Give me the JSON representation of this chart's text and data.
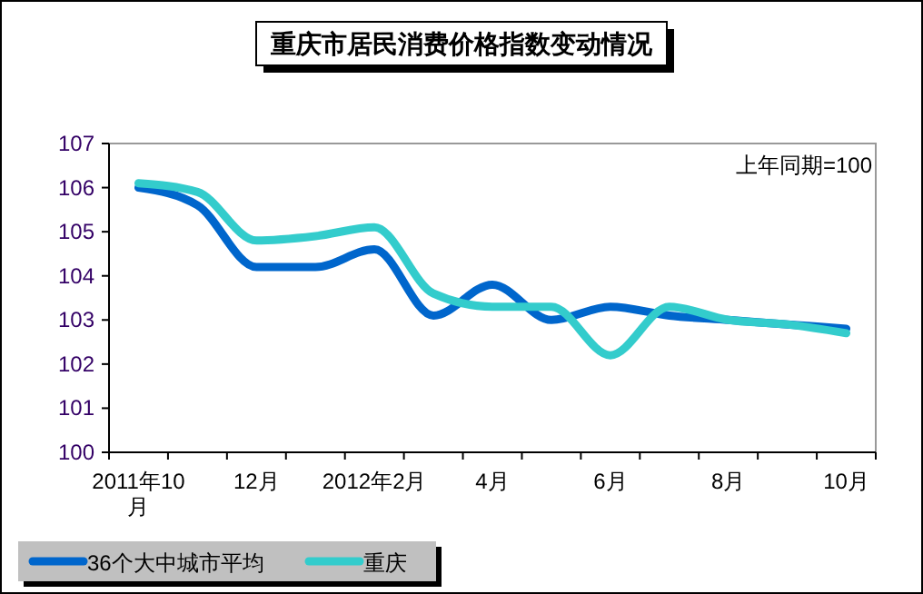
{
  "chart_data": {
    "type": "line",
    "title": "重庆市居民消费价格指数变动情况",
    "annotations": [
      "上年同期=100"
    ],
    "categories": [
      "2011年10月",
      null,
      "12月",
      null,
      "2012年2月",
      null,
      "4月",
      null,
      "6月",
      null,
      "8月",
      null,
      "10月"
    ],
    "series": [
      {
        "name": "36个大中城市平均",
        "color": "#0066cc",
        "values": [
          106.0,
          105.6,
          104.2,
          104.2,
          104.6,
          103.1,
          103.8,
          103.0,
          103.3,
          103.1,
          103.0,
          102.9,
          102.8
        ]
      },
      {
        "name": "重庆",
        "color": "#33cccc",
        "values": [
          106.1,
          105.9,
          104.8,
          104.9,
          105.1,
          103.6,
          103.3,
          103.3,
          102.2,
          103.3,
          103.0,
          102.9,
          102.7
        ]
      }
    ],
    "ylim": [
      100,
      107
    ],
    "yticks": [
      100,
      101,
      102,
      103,
      104,
      105,
      106,
      107
    ],
    "grid": false,
    "legend": "bottom left",
    "marker": "none",
    "line_style": "solid"
  }
}
